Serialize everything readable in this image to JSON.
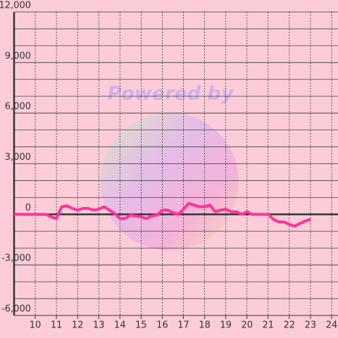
{
  "chart_data": {
    "type": "line",
    "watermark": "Powered by",
    "x": [
      9,
      9.25,
      9.5,
      9.75,
      10,
      10.25,
      10.5,
      10.75,
      11,
      11.25,
      11.5,
      11.75,
      12,
      12.25,
      12.5,
      12.75,
      13,
      13.25,
      13.5,
      13.75,
      14,
      14.25,
      14.5,
      14.75,
      15,
      15.25,
      15.5,
      15.75,
      16,
      16.25,
      16.5,
      16.75,
      17,
      17.25,
      17.5,
      17.75,
      18,
      18.25,
      18.5,
      18.75,
      19,
      19.25,
      19.5,
      19.75,
      20,
      20.25,
      20.5,
      20.75,
      21,
      21.25,
      21.5,
      21.75,
      22,
      22.25,
      22.5,
      22.75,
      23
    ],
    "values": [
      0,
      0,
      0,
      0,
      0,
      0,
      0,
      -150,
      -250,
      450,
      500,
      350,
      250,
      350,
      350,
      250,
      300,
      450,
      250,
      50,
      -250,
      -250,
      -50,
      -100,
      -150,
      -250,
      -100,
      -50,
      250,
      250,
      100,
      0,
      300,
      650,
      550,
      450,
      450,
      550,
      150,
      250,
      300,
      150,
      150,
      0,
      150,
      0,
      0,
      0,
      0,
      -300,
      -450,
      -450,
      -600,
      -700,
      -550,
      -400,
      -300
    ],
    "color": "#ff3399",
    "xlim": [
      9,
      24.3
    ],
    "xticks": [
      10,
      11,
      12,
      13,
      14,
      15,
      16,
      17,
      18,
      19,
      20,
      21,
      22,
      23,
      24
    ],
    "ylim": [
      -6000,
      12000
    ],
    "yticks": [
      {
        "value": -6000,
        "label": "-6,000"
      },
      {
        "value": -3000,
        "label": "-3,000"
      },
      0,
      {
        "value": 3000,
        "label": "3,000"
      },
      {
        "value": 6000,
        "label": "6,000"
      },
      {
        "value": 9000,
        "label": "9,000"
      },
      {
        "value": 12000,
        "label": "12,000"
      }
    ],
    "y_minor_ticks": [
      -5000,
      -4000,
      -2000,
      -1000,
      1000,
      2000,
      4000,
      5000,
      7000,
      8000,
      10000,
      11000
    ],
    "grid": true
  }
}
